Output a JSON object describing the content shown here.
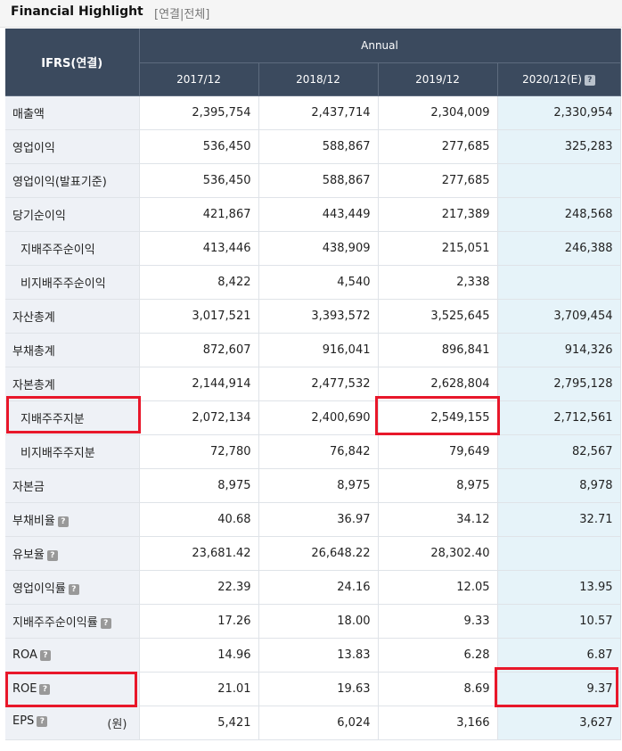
{
  "header": {
    "title": "Financial Highlight",
    "subtitle": "[연결|전체]"
  },
  "table": {
    "corner_label": "IFRS(연결)",
    "group_label": "Annual",
    "columns": [
      "2017/12",
      "2018/12",
      "2019/12",
      "2020/12(E)"
    ],
    "help_glyph": "?",
    "rows": [
      {
        "label": "매출액",
        "values": [
          "2,395,754",
          "2,437,714",
          "2,304,009",
          "2,330,954"
        ]
      },
      {
        "label": "영업이익",
        "values": [
          "536,450",
          "588,867",
          "277,685",
          "325,283"
        ]
      },
      {
        "label": "영업이익(발표기준)",
        "values": [
          "536,450",
          "588,867",
          "277,685",
          ""
        ]
      },
      {
        "label": "당기순이익",
        "values": [
          "421,867",
          "443,449",
          "217,389",
          "248,568"
        ]
      },
      {
        "label": "지배주주순이익",
        "values": [
          "413,446",
          "438,909",
          "215,051",
          "246,388"
        ]
      },
      {
        "label": "비지배주주순이익",
        "values": [
          "8,422",
          "4,540",
          "2,338",
          ""
        ]
      },
      {
        "label": "자산총계",
        "values": [
          "3,017,521",
          "3,393,572",
          "3,525,645",
          "3,709,454"
        ]
      },
      {
        "label": "부채총계",
        "values": [
          "872,607",
          "916,041",
          "896,841",
          "914,326"
        ]
      },
      {
        "label": "자본총계",
        "values": [
          "2,144,914",
          "2,477,532",
          "2,628,804",
          "2,795,128"
        ]
      },
      {
        "label": "지배주주지분",
        "values": [
          "2,072,134",
          "2,400,690",
          "2,549,155",
          "2,712,561"
        ]
      },
      {
        "label": "비지배주주지분",
        "values": [
          "72,780",
          "76,842",
          "79,649",
          "82,567"
        ]
      },
      {
        "label": "자본금",
        "values": [
          "8,975",
          "8,975",
          "8,975",
          "8,978"
        ]
      },
      {
        "label": "부채비율",
        "values": [
          "40.68",
          "36.97",
          "34.12",
          "32.71"
        ]
      },
      {
        "label": "유보율",
        "values": [
          "23,681.42",
          "26,648.22",
          "28,302.40",
          ""
        ]
      },
      {
        "label": "영업이익률",
        "values": [
          "22.39",
          "24.16",
          "12.05",
          "13.95"
        ]
      },
      {
        "label": "지배주주순이익률",
        "values": [
          "17.26",
          "18.00",
          "9.33",
          "10.57"
        ]
      },
      {
        "label": "ROA",
        "values": [
          "14.96",
          "13.83",
          "6.28",
          "6.87"
        ]
      },
      {
        "label": "ROE",
        "values": [
          "21.01",
          "19.63",
          "8.69",
          "9.37"
        ]
      },
      {
        "label": "EPS",
        "unit": "(원)",
        "values": [
          "5,421",
          "6,024",
          "3,166",
          "3,627"
        ]
      }
    ]
  },
  "colors": {
    "header_bg": "#3b4a5e",
    "label_bg": "#eef1f6",
    "estimate_bg": "#e6f3f9",
    "highlight": "#e8172a"
  }
}
